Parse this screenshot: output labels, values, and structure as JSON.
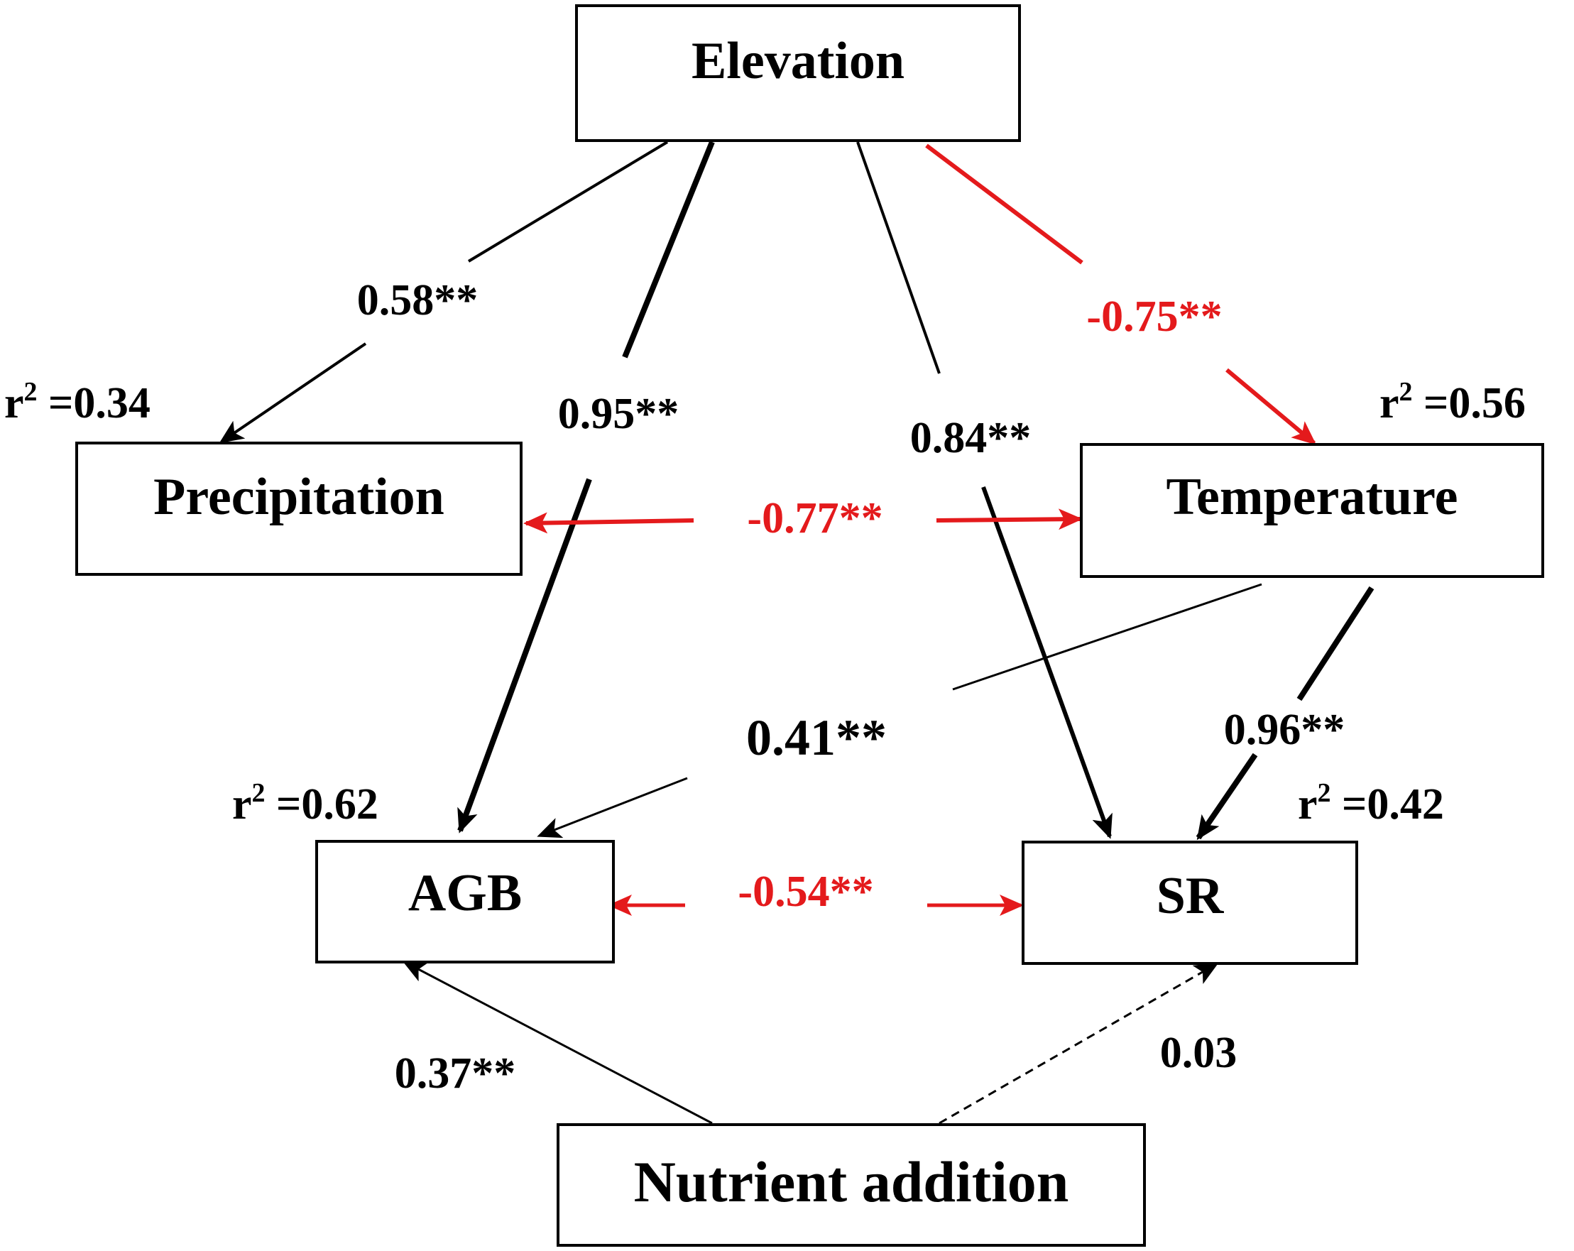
{
  "colors": {
    "positive": "#000000",
    "negative": "#e41a1c"
  },
  "nodes": {
    "elevation": "Elevation",
    "precipitation": "Precipitation",
    "temperature": "Temperature",
    "agb": "AGB",
    "sr": "SR",
    "nutrient": "Nutrient addition"
  },
  "r2": {
    "precipitation": "0.34",
    "temperature": "0.56",
    "agb": "0.62",
    "sr": "0.42"
  },
  "r2_prefix": "r",
  "r2_sup": "2",
  "r2_eq": " =",
  "paths": {
    "elev_precip": "0.58**",
    "elev_agb": "0.95**",
    "elev_sr": "0.84**",
    "elev_temp": "-0.75**",
    "precip_temp": "-0.77**",
    "temp_agb": "0.41**",
    "temp_sr": "0.96**",
    "agb_sr": "-0.54**",
    "nutr_agb": "0.37**",
    "nutr_sr": "0.03"
  }
}
